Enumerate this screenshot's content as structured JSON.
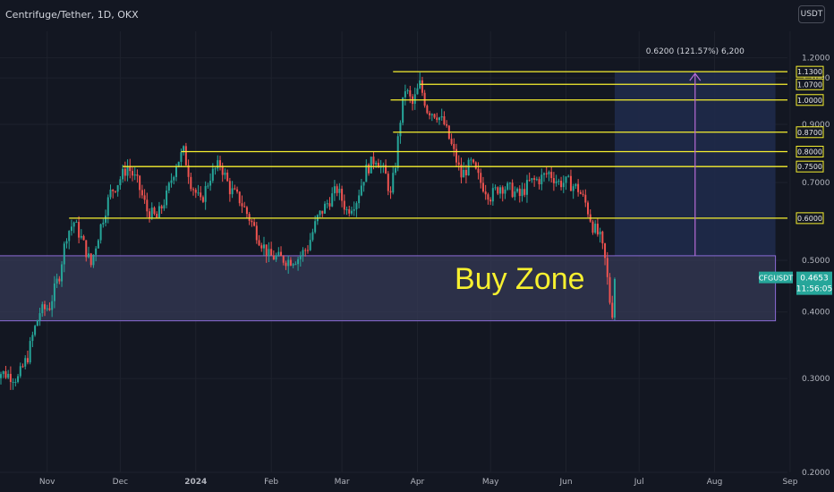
{
  "header": {
    "title": "Centrifuge/Tether, 1D, OKX",
    "currency_button": "USDT"
  },
  "chart_data": {
    "type": "candlestick",
    "symbol": "CFGUSDT",
    "last_price": "0.4653",
    "countdown": "11:56:05",
    "y_scale": "log",
    "ylim": [
      0.2,
      1.26
    ],
    "y_ticks": [
      "1.2000",
      "1.1000",
      "0.9000",
      "0.7000",
      "0.5000",
      "0.4000",
      "0.3000",
      "0.2000"
    ],
    "x_labels": [
      {
        "label": "Nov",
        "date": "2023-11-01"
      },
      {
        "label": "Dec",
        "date": "2023-12-01"
      },
      {
        "label": "2024",
        "date": "2024-01-01"
      },
      {
        "label": "Feb",
        "date": "2024-02-01"
      },
      {
        "label": "Mar",
        "date": "2024-03-01"
      },
      {
        "label": "Apr",
        "date": "2024-04-01"
      },
      {
        "label": "May",
        "date": "2024-05-01"
      },
      {
        "label": "Jun",
        "date": "2024-06-01"
      },
      {
        "label": "Jul",
        "date": "2024-07-01"
      },
      {
        "label": "Aug",
        "date": "2024-08-01"
      },
      {
        "label": "Sep",
        "date": "2024-09-01"
      }
    ],
    "price_path": [
      [
        "2023-10-10",
        0.31
      ],
      [
        "2023-10-16",
        0.305
      ],
      [
        "2023-10-20",
        0.3
      ],
      [
        "2023-10-24",
        0.33
      ],
      [
        "2023-10-26",
        0.36
      ],
      [
        "2023-10-29",
        0.4
      ],
      [
        "2023-11-02",
        0.41
      ],
      [
        "2023-11-06",
        0.47
      ],
      [
        "2023-11-09",
        0.56
      ],
      [
        "2023-11-12",
        0.59
      ],
      [
        "2023-11-15",
        0.55
      ],
      [
        "2023-11-19",
        0.49
      ],
      [
        "2023-11-23",
        0.58
      ],
      [
        "2023-11-27",
        0.67
      ],
      [
        "2023-11-30",
        0.7
      ],
      [
        "2023-12-04",
        0.75
      ],
      [
        "2023-12-08",
        0.7
      ],
      [
        "2023-12-12",
        0.62
      ],
      [
        "2023-12-16",
        0.6
      ],
      [
        "2023-12-20",
        0.66
      ],
      [
        "2023-12-24",
        0.76
      ],
      [
        "2023-12-27",
        0.8
      ],
      [
        "2023-12-30",
        0.7
      ],
      [
        "2024-01-03",
        0.64
      ],
      [
        "2024-01-07",
        0.72
      ],
      [
        "2024-01-11",
        0.76
      ],
      [
        "2024-01-15",
        0.68
      ],
      [
        "2024-01-19",
        0.65
      ],
      [
        "2024-01-23",
        0.6
      ],
      [
        "2024-01-27",
        0.55
      ],
      [
        "2024-01-31",
        0.51
      ],
      [
        "2024-02-04",
        0.505
      ],
      [
        "2024-02-08",
        0.5
      ],
      [
        "2024-02-12",
        0.505
      ],
      [
        "2024-02-16",
        0.53
      ],
      [
        "2024-02-20",
        0.6
      ],
      [
        "2024-02-24",
        0.64
      ],
      [
        "2024-02-28",
        0.68
      ],
      [
        "2024-03-03",
        0.62
      ],
      [
        "2024-03-07",
        0.65
      ],
      [
        "2024-03-11",
        0.74
      ],
      [
        "2024-03-15",
        0.78
      ],
      [
        "2024-03-19",
        0.72
      ],
      [
        "2024-03-21",
        0.66
      ],
      [
        "2024-03-23",
        0.76
      ],
      [
        "2024-03-25",
        0.92
      ],
      [
        "2024-03-27",
        1.05
      ],
      [
        "2024-03-30",
        0.98
      ],
      [
        "2024-04-02",
        1.07
      ],
      [
        "2024-04-05",
        0.96
      ],
      [
        "2024-04-09",
        0.94
      ],
      [
        "2024-04-12",
        0.9
      ],
      [
        "2024-04-15",
        0.82
      ],
      [
        "2024-04-19",
        0.72
      ],
      [
        "2024-04-23",
        0.76
      ],
      [
        "2024-04-27",
        0.7
      ],
      [
        "2024-05-01",
        0.66
      ],
      [
        "2024-05-05",
        0.69
      ],
      [
        "2024-05-09",
        0.68
      ],
      [
        "2024-05-13",
        0.66
      ],
      [
        "2024-05-17",
        0.7
      ],
      [
        "2024-05-21",
        0.71
      ],
      [
        "2024-05-25",
        0.73
      ],
      [
        "2024-05-29",
        0.7
      ],
      [
        "2024-06-02",
        0.7
      ],
      [
        "2024-06-06",
        0.68
      ],
      [
        "2024-06-09",
        0.64
      ],
      [
        "2024-06-12",
        0.58
      ],
      [
        "2024-06-15",
        0.55
      ],
      [
        "2024-06-17",
        0.5
      ],
      [
        "2024-06-19",
        0.42
      ],
      [
        "2024-06-20",
        0.4
      ],
      [
        "2024-06-21",
        0.4653
      ]
    ],
    "horizontal_levels": [
      {
        "label": "1.1300",
        "value": 1.13,
        "start": "2024-03-22"
      },
      {
        "label": "1.0700",
        "value": 1.07,
        "start": "2024-04-02"
      },
      {
        "label": "1.0000",
        "value": 1.0,
        "start": "2024-03-21"
      },
      {
        "label": "0.8700",
        "value": 0.87,
        "start": "2024-03-22"
      },
      {
        "label": "0.8000",
        "value": 0.8,
        "start": "2023-12-26"
      },
      {
        "label": "0.7500",
        "value": 0.75,
        "start": "2023-12-02"
      },
      {
        "label": "0.6000",
        "value": 0.6,
        "start": "2023-11-10"
      }
    ],
    "buy_zone": {
      "label": "Buy Zone",
      "low": 0.385,
      "high": 0.51,
      "start": "2023-10-09",
      "end": "2024-08-26"
    },
    "target_box": {
      "low": 0.51,
      "high": 1.13,
      "start": "2024-06-21",
      "end": "2024-08-26"
    },
    "measure_label": "0.6200 (121.57%) 6,200",
    "colors": {
      "background": "#131722",
      "up": "#26a69a",
      "down": "#ef5350",
      "level_line": "#f7f02f",
      "buy_zone_fill": "#363a55",
      "buy_zone_border": "#8b6bd6",
      "target_fill": "#1f2a4a",
      "arrow": "#b76bd6",
      "grid": "#1e222d"
    }
  }
}
